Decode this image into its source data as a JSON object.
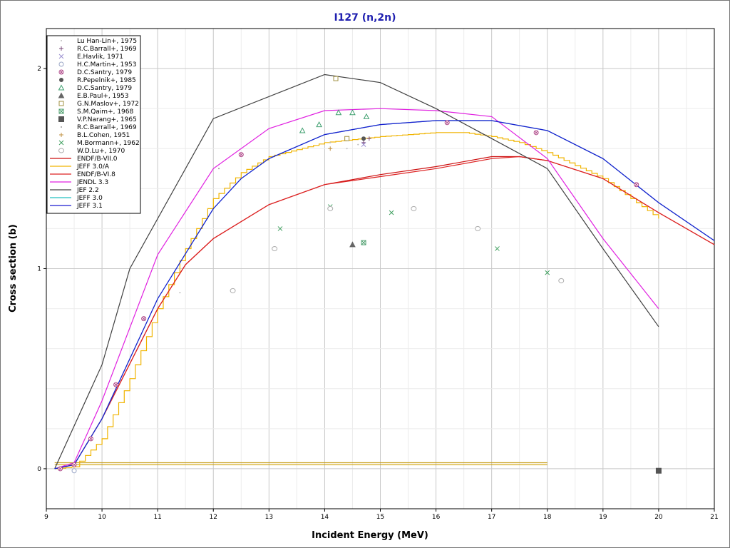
{
  "chart_data": {
    "type": "line",
    "title": "I127 (n,2n)",
    "xlabel": "Incident Energy (MeV)",
    "ylabel": "Cross section (b)",
    "xlim": [
      9,
      21
    ],
    "ylim": [
      -0.2,
      2.2
    ],
    "x_ticks": [
      9,
      10,
      11,
      12,
      13,
      14,
      15,
      16,
      17,
      18,
      19,
      20,
      21
    ],
    "y_ticks": [
      0,
      1,
      2
    ],
    "grid": true,
    "legend_position": "top-left",
    "scatter_series": [
      {
        "name": "Lu Han-Lin+, 1975",
        "marker": "dot",
        "color": "#bbbbbb",
        "points": [
          [
            14.1,
            1.63
          ],
          [
            14.4,
            1.6
          ],
          [
            14.6,
            1.62
          ],
          [
            11.4,
            0.88
          ]
        ]
      },
      {
        "name": "R.C.Barrall+, 1969",
        "marker": "plus",
        "color": "#7a4a7a",
        "points": [
          [
            14.7,
            1.63
          ],
          [
            14.8,
            1.65
          ]
        ]
      },
      {
        "name": "E.Havlik, 1971",
        "marker": "x",
        "color": "#9b8fd0",
        "points": [
          [
            14.7,
            1.62
          ]
        ]
      },
      {
        "name": "H.C.Martin+, 1953",
        "marker": "circle",
        "color": "#9aa6c6",
        "points": [
          [
            9.5,
            -0.01
          ]
        ]
      },
      {
        "name": "D.C.Santry, 1979",
        "marker": "circlex",
        "color": "#b04a8a",
        "points": [
          [
            9.25,
            0.0
          ],
          [
            9.5,
            0.02
          ],
          [
            9.8,
            0.15
          ],
          [
            10.25,
            0.42
          ],
          [
            10.75,
            0.75
          ],
          [
            12.5,
            1.57
          ],
          [
            16.2,
            1.73
          ],
          [
            17.8,
            1.68
          ],
          [
            19.6,
            1.42
          ]
        ]
      },
      {
        "name": "R.Pepelnik+, 1985",
        "marker": "dotfill",
        "color": "#555555",
        "points": [
          [
            14.7,
            1.65
          ]
        ]
      },
      {
        "name": "D.C.Santry, 1979",
        "marker": "triangle",
        "color": "#40a070",
        "points": [
          [
            13.6,
            1.69
          ],
          [
            13.9,
            1.72
          ],
          [
            14.25,
            1.78
          ],
          [
            14.5,
            1.78
          ],
          [
            14.75,
            1.76
          ]
        ]
      },
      {
        "name": "E.B.Paul+, 1953",
        "marker": "trianglefill",
        "color": "#666666",
        "points": [
          [
            14.5,
            1.12
          ]
        ]
      },
      {
        "name": "G.N.Maslov+, 1972",
        "marker": "square",
        "color": "#a09040",
        "points": [
          [
            14.2,
            1.95
          ],
          [
            14.4,
            1.65
          ]
        ]
      },
      {
        "name": "S.M.Qaim+, 1968",
        "marker": "squarex",
        "color": "#50a070",
        "points": [
          [
            14.7,
            1.13
          ]
        ]
      },
      {
        "name": "V.P.Narang+, 1965",
        "marker": "squarefill",
        "color": "#555555",
        "points": [
          [
            20.0,
            -0.01
          ]
        ]
      },
      {
        "name": "R.C.Barrall+, 1969",
        "marker": "dot",
        "color": "#999999",
        "points": [
          [
            12.1,
            1.5
          ]
        ]
      },
      {
        "name": "B.L.Cohen, 1951",
        "marker": "plus",
        "color": "#c09040",
        "points": [
          [
            14.1,
            1.6
          ]
        ]
      },
      {
        "name": "M.Bormann+, 1962",
        "marker": "x",
        "color": "#40a060",
        "points": [
          [
            13.2,
            1.2
          ],
          [
            14.1,
            1.31
          ],
          [
            15.2,
            1.28
          ],
          [
            17.1,
            1.1
          ],
          [
            18.0,
            0.98
          ]
        ]
      },
      {
        "name": "W.D.Lu+, 1970",
        "marker": "hexagon",
        "color": "#aaaaaa",
        "points": [
          [
            12.35,
            0.89
          ],
          [
            13.1,
            1.1
          ],
          [
            14.1,
            1.3
          ],
          [
            15.6,
            1.3
          ],
          [
            16.75,
            1.2
          ],
          [
            18.25,
            0.94
          ]
        ]
      }
    ],
    "line_series": [
      {
        "name": "ENDF/B-VII.0",
        "color": "#cc1010",
        "points": [
          [
            9.15,
            0.0
          ],
          [
            9.5,
            0.02
          ],
          [
            10.0,
            0.25
          ],
          [
            11.0,
            0.8
          ],
          [
            11.5,
            1.02
          ],
          [
            12.0,
            1.15
          ],
          [
            13.0,
            1.32
          ],
          [
            14.0,
            1.42
          ],
          [
            15.0,
            1.47
          ],
          [
            16.0,
            1.51
          ],
          [
            17.0,
            1.56
          ],
          [
            17.5,
            1.56
          ],
          [
            18.0,
            1.54
          ],
          [
            19.0,
            1.45
          ],
          [
            20.0,
            1.28
          ],
          [
            21.0,
            1.12
          ]
        ]
      },
      {
        "name": "JEFF 3.0/A",
        "color": "#f0b400",
        "step": true,
        "points": [
          [
            9.15,
            0.0
          ],
          [
            9.5,
            0.01
          ],
          [
            10.0,
            0.15
          ],
          [
            10.5,
            0.45
          ],
          [
            11.0,
            0.8
          ],
          [
            11.5,
            1.1
          ],
          [
            12.0,
            1.35
          ],
          [
            12.5,
            1.48
          ],
          [
            13.0,
            1.56
          ],
          [
            14.0,
            1.63
          ],
          [
            15.0,
            1.66
          ],
          [
            16.0,
            1.68
          ],
          [
            16.5,
            1.68
          ],
          [
            17.0,
            1.66
          ],
          [
            17.5,
            1.63
          ],
          [
            18.0,
            1.58
          ],
          [
            19.0,
            1.45
          ],
          [
            20.0,
            1.25
          ]
        ]
      },
      {
        "name": "ENDF/B-VI.8",
        "color": "#dd2020",
        "points": [
          [
            9.15,
            0.0
          ],
          [
            9.5,
            0.02
          ],
          [
            10.0,
            0.25
          ],
          [
            11.0,
            0.8
          ],
          [
            11.5,
            1.02
          ],
          [
            12.0,
            1.15
          ],
          [
            13.0,
            1.32
          ],
          [
            14.0,
            1.42
          ],
          [
            15.0,
            1.46
          ],
          [
            16.0,
            1.5
          ],
          [
            17.0,
            1.55
          ],
          [
            17.5,
            1.56
          ],
          [
            18.0,
            1.54
          ],
          [
            19.0,
            1.45
          ],
          [
            20.0,
            1.28
          ],
          [
            21.0,
            1.12
          ]
        ]
      },
      {
        "name": "JENDL 3.3",
        "color": "#e020e0",
        "points": [
          [
            9.15,
            0.0
          ],
          [
            9.5,
            0.03
          ],
          [
            10.0,
            0.34
          ],
          [
            11.0,
            1.07
          ],
          [
            12.0,
            1.5
          ],
          [
            13.0,
            1.7
          ],
          [
            14.0,
            1.79
          ],
          [
            15.0,
            1.8
          ],
          [
            16.0,
            1.79
          ],
          [
            17.0,
            1.76
          ],
          [
            18.0,
            1.55
          ],
          [
            19.0,
            1.15
          ],
          [
            20.0,
            0.8
          ]
        ]
      },
      {
        "name": "JEF 2.2",
        "color": "#404040",
        "points": [
          [
            9.15,
            0.0
          ],
          [
            10.0,
            0.52
          ],
          [
            10.5,
            1.0
          ],
          [
            12.0,
            1.75
          ],
          [
            14.0,
            1.97
          ],
          [
            15.0,
            1.93
          ],
          [
            16.0,
            1.8
          ],
          [
            17.0,
            1.65
          ],
          [
            18.0,
            1.5
          ],
          [
            19.0,
            1.1
          ],
          [
            20.0,
            0.71
          ]
        ]
      },
      {
        "name": "JEFF 3.0",
        "color": "#20c0c0",
        "points": [
          [
            9.15,
            0.0
          ],
          [
            9.5,
            0.02
          ],
          [
            10.0,
            0.25
          ],
          [
            11.0,
            0.85
          ],
          [
            12.0,
            1.3
          ],
          [
            12.5,
            1.45
          ],
          [
            13.0,
            1.55
          ],
          [
            14.0,
            1.67
          ],
          [
            15.0,
            1.72
          ],
          [
            16.0,
            1.74
          ],
          [
            17.0,
            1.74
          ],
          [
            18.0,
            1.69
          ],
          [
            19.0,
            1.55
          ],
          [
            20.0,
            1.33
          ],
          [
            21.0,
            1.14
          ]
        ]
      },
      {
        "name": "JEFF 3.1",
        "color": "#1a1ad0",
        "points": [
          [
            9.15,
            0.0
          ],
          [
            9.5,
            0.02
          ],
          [
            10.0,
            0.25
          ],
          [
            11.0,
            0.85
          ],
          [
            12.0,
            1.3
          ],
          [
            12.5,
            1.45
          ],
          [
            13.0,
            1.55
          ],
          [
            14.0,
            1.67
          ],
          [
            15.0,
            1.72
          ],
          [
            16.0,
            1.74
          ],
          [
            17.0,
            1.74
          ],
          [
            18.0,
            1.69
          ],
          [
            19.0,
            1.55
          ],
          [
            20.0,
            1.33
          ],
          [
            21.0,
            1.14
          ]
        ]
      }
    ],
    "reference_lines": [
      {
        "color": "#d0a000",
        "points": [
          [
            9.15,
            0.02
          ],
          [
            18.0,
            0.02
          ]
        ]
      },
      {
        "color": "#c8a020",
        "points": [
          [
            9.15,
            0.03
          ],
          [
            18.0,
            0.03
          ]
        ]
      }
    ]
  }
}
